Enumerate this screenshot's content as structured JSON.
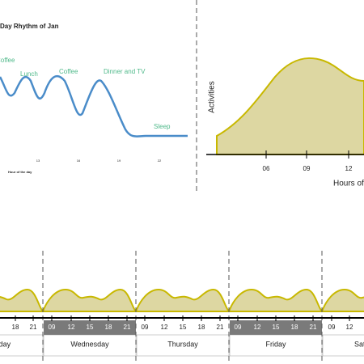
{
  "day_chart": {
    "title": "Day Rhythm of Jan",
    "annotations": [
      "Coffee",
      "Lunch",
      "Coffee",
      "Dinner and TV",
      "Sleep"
    ],
    "ticks": [
      "13",
      "16",
      "19",
      "22"
    ],
    "xlabel": "Hour of the day"
  },
  "hours_chart": {
    "ylabel": "Activities",
    "ticks": [
      "06",
      "09",
      "12"
    ],
    "xlabel": "Hours of the day"
  },
  "week_chart": {
    "ticks": [
      "18",
      "21",
      "09",
      "12",
      "15",
      "18",
      "21",
      "09",
      "12",
      "15",
      "18",
      "21",
      "09",
      "12",
      "15",
      "18",
      "21",
      "09",
      "12"
    ],
    "days": [
      "Tuesday",
      "Wednesday",
      "Thursday",
      "Friday",
      "Saturday"
    ]
  }
}
